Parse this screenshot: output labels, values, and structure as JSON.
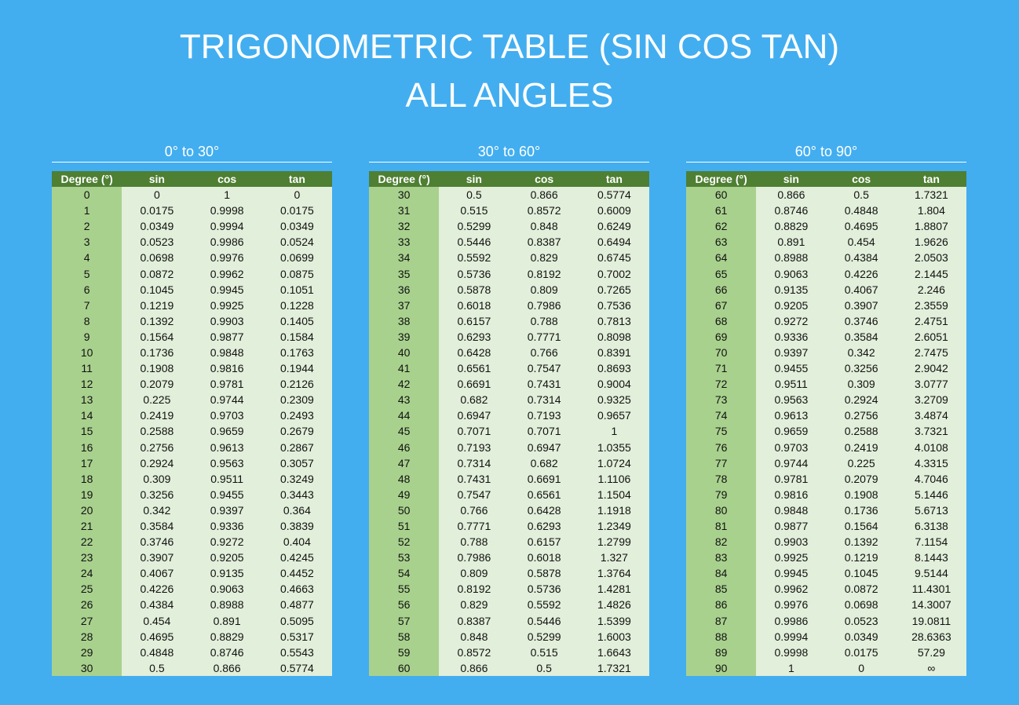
{
  "header": {
    "title_line1": "TRIGONOMETRIC TABLE (SIN COS TAN)",
    "title_line2": "ALL ANGLES"
  },
  "tables": [
    {
      "subtitle": "0° to 30°",
      "columns": [
        "Degree (°)",
        "sin",
        "cos",
        "tan"
      ],
      "rows": [
        [
          "0",
          "0",
          "1",
          "0"
        ],
        [
          "1",
          "0.0175",
          "0.9998",
          "0.0175"
        ],
        [
          "2",
          "0.0349",
          "0.9994",
          "0.0349"
        ],
        [
          "3",
          "0.0523",
          "0.9986",
          "0.0524"
        ],
        [
          "4",
          "0.0698",
          "0.9976",
          "0.0699"
        ],
        [
          "5",
          "0.0872",
          "0.9962",
          "0.0875"
        ],
        [
          "6",
          "0.1045",
          "0.9945",
          "0.1051"
        ],
        [
          "7",
          "0.1219",
          "0.9925",
          "0.1228"
        ],
        [
          "8",
          "0.1392",
          "0.9903",
          "0.1405"
        ],
        [
          "9",
          "0.1564",
          "0.9877",
          "0.1584"
        ],
        [
          "10",
          "0.1736",
          "0.9848",
          "0.1763"
        ],
        [
          "11",
          "0.1908",
          "0.9816",
          "0.1944"
        ],
        [
          "12",
          "0.2079",
          "0.9781",
          "0.2126"
        ],
        [
          "13",
          "0.225",
          "0.9744",
          "0.2309"
        ],
        [
          "14",
          "0.2419",
          "0.9703",
          "0.2493"
        ],
        [
          "15",
          "0.2588",
          "0.9659",
          "0.2679"
        ],
        [
          "16",
          "0.2756",
          "0.9613",
          "0.2867"
        ],
        [
          "17",
          "0.2924",
          "0.9563",
          "0.3057"
        ],
        [
          "18",
          "0.309",
          "0.9511",
          "0.3249"
        ],
        [
          "19",
          "0.3256",
          "0.9455",
          "0.3443"
        ],
        [
          "20",
          "0.342",
          "0.9397",
          "0.364"
        ],
        [
          "21",
          "0.3584",
          "0.9336",
          "0.3839"
        ],
        [
          "22",
          "0.3746",
          "0.9272",
          "0.404"
        ],
        [
          "23",
          "0.3907",
          "0.9205",
          "0.4245"
        ],
        [
          "24",
          "0.4067",
          "0.9135",
          "0.4452"
        ],
        [
          "25",
          "0.4226",
          "0.9063",
          "0.4663"
        ],
        [
          "26",
          "0.4384",
          "0.8988",
          "0.4877"
        ],
        [
          "27",
          "0.454",
          "0.891",
          "0.5095"
        ],
        [
          "28",
          "0.4695",
          "0.8829",
          "0.5317"
        ],
        [
          "29",
          "0.4848",
          "0.8746",
          "0.5543"
        ],
        [
          "30",
          "0.5",
          "0.866",
          "0.5774"
        ]
      ]
    },
    {
      "subtitle": "30° to 60°",
      "columns": [
        "Degree (°)",
        "sin",
        "cos",
        "tan"
      ],
      "rows": [
        [
          "30",
          "0.5",
          "0.866",
          "0.5774"
        ],
        [
          "31",
          "0.515",
          "0.8572",
          "0.6009"
        ],
        [
          "32",
          "0.5299",
          "0.848",
          "0.6249"
        ],
        [
          "33",
          "0.5446",
          "0.8387",
          "0.6494"
        ],
        [
          "34",
          "0.5592",
          "0.829",
          "0.6745"
        ],
        [
          "35",
          "0.5736",
          "0.8192",
          "0.7002"
        ],
        [
          "36",
          "0.5878",
          "0.809",
          "0.7265"
        ],
        [
          "37",
          "0.6018",
          "0.7986",
          "0.7536"
        ],
        [
          "38",
          "0.6157",
          "0.788",
          "0.7813"
        ],
        [
          "39",
          "0.6293",
          "0.7771",
          "0.8098"
        ],
        [
          "40",
          "0.6428",
          "0.766",
          "0.8391"
        ],
        [
          "41",
          "0.6561",
          "0.7547",
          "0.8693"
        ],
        [
          "42",
          "0.6691",
          "0.7431",
          "0.9004"
        ],
        [
          "43",
          "0.682",
          "0.7314",
          "0.9325"
        ],
        [
          "44",
          "0.6947",
          "0.7193",
          "0.9657"
        ],
        [
          "45",
          "0.7071",
          "0.7071",
          "1"
        ],
        [
          "46",
          "0.7193",
          "0.6947",
          "1.0355"
        ],
        [
          "47",
          "0.7314",
          "0.682",
          "1.0724"
        ],
        [
          "48",
          "0.7431",
          "0.6691",
          "1.1106"
        ],
        [
          "49",
          "0.7547",
          "0.6561",
          "1.1504"
        ],
        [
          "50",
          "0.766",
          "0.6428",
          "1.1918"
        ],
        [
          "51",
          "0.7771",
          "0.6293",
          "1.2349"
        ],
        [
          "52",
          "0.788",
          "0.6157",
          "1.2799"
        ],
        [
          "53",
          "0.7986",
          "0.6018",
          "1.327"
        ],
        [
          "54",
          "0.809",
          "0.5878",
          "1.3764"
        ],
        [
          "55",
          "0.8192",
          "0.5736",
          "1.4281"
        ],
        [
          "56",
          "0.829",
          "0.5592",
          "1.4826"
        ],
        [
          "57",
          "0.8387",
          "0.5446",
          "1.5399"
        ],
        [
          "58",
          "0.848",
          "0.5299",
          "1.6003"
        ],
        [
          "59",
          "0.8572",
          "0.515",
          "1.6643"
        ],
        [
          "60",
          "0.866",
          "0.5",
          "1.7321"
        ]
      ]
    },
    {
      "subtitle": "60° to 90°",
      "columns": [
        "Degree (°)",
        "sin",
        "cos",
        "tan"
      ],
      "rows": [
        [
          "60",
          "0.866",
          "0.5",
          "1.7321"
        ],
        [
          "61",
          "0.8746",
          "0.4848",
          "1.804"
        ],
        [
          "62",
          "0.8829",
          "0.4695",
          "1.8807"
        ],
        [
          "63",
          "0.891",
          "0.454",
          "1.9626"
        ],
        [
          "64",
          "0.8988",
          "0.4384",
          "2.0503"
        ],
        [
          "65",
          "0.9063",
          "0.4226",
          "2.1445"
        ],
        [
          "66",
          "0.9135",
          "0.4067",
          "2.246"
        ],
        [
          "67",
          "0.9205",
          "0.3907",
          "2.3559"
        ],
        [
          "68",
          "0.9272",
          "0.3746",
          "2.4751"
        ],
        [
          "69",
          "0.9336",
          "0.3584",
          "2.6051"
        ],
        [
          "70",
          "0.9397",
          "0.342",
          "2.7475"
        ],
        [
          "71",
          "0.9455",
          "0.3256",
          "2.9042"
        ],
        [
          "72",
          "0.9511",
          "0.309",
          "3.0777"
        ],
        [
          "73",
          "0.9563",
          "0.2924",
          "3.2709"
        ],
        [
          "74",
          "0.9613",
          "0.2756",
          "3.4874"
        ],
        [
          "75",
          "0.9659",
          "0.2588",
          "3.7321"
        ],
        [
          "76",
          "0.9703",
          "0.2419",
          "4.0108"
        ],
        [
          "77",
          "0.9744",
          "0.225",
          "4.3315"
        ],
        [
          "78",
          "0.9781",
          "0.2079",
          "4.7046"
        ],
        [
          "79",
          "0.9816",
          "0.1908",
          "5.1446"
        ],
        [
          "80",
          "0.9848",
          "0.1736",
          "5.6713"
        ],
        [
          "81",
          "0.9877",
          "0.1564",
          "6.3138"
        ],
        [
          "82",
          "0.9903",
          "0.1392",
          "7.1154"
        ],
        [
          "83",
          "0.9925",
          "0.1219",
          "8.1443"
        ],
        [
          "84",
          "0.9945",
          "0.1045",
          "9.5144"
        ],
        [
          "85",
          "0.9962",
          "0.0872",
          "11.4301"
        ],
        [
          "86",
          "0.9976",
          "0.0698",
          "14.3007"
        ],
        [
          "87",
          "0.9986",
          "0.0523",
          "19.0811"
        ],
        [
          "88",
          "0.9994",
          "0.0349",
          "28.6363"
        ],
        [
          "89",
          "0.9998",
          "0.0175",
          "57.29"
        ],
        [
          "90",
          "1",
          "0",
          "∞"
        ]
      ]
    }
  ]
}
